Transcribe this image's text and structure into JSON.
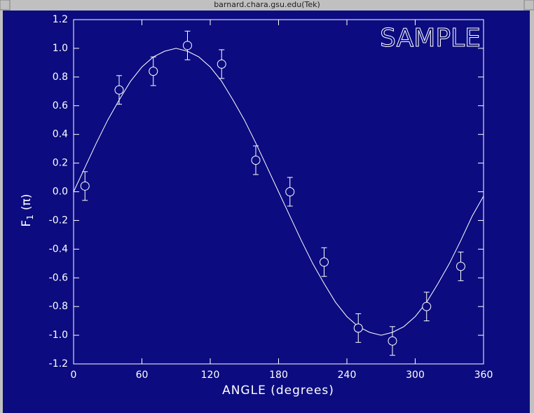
{
  "window": {
    "title": "barnard.chara.gsu.edu(Tek)"
  },
  "chart_data": {
    "type": "errorbar",
    "title": "SAMPLE",
    "xlabel": "ANGLE (degrees)",
    "ylabel": {
      "main": "F",
      "sub": "1",
      "rest": "(π)"
    },
    "xlim": [
      0,
      360
    ],
    "xticks": [
      0,
      60,
      120,
      180,
      240,
      300,
      360
    ],
    "ylim": [
      -1.2,
      1.2
    ],
    "yticks": [
      1.2,
      {
        "value": 1,
        "label": "1.0"
      },
      0.8,
      0.6,
      0.4,
      0.2,
      {
        "value": 0,
        "label": "0.0"
      },
      -0.2,
      -0.4,
      -0.6,
      -0.8,
      {
        "value": -1,
        "label": "-1.0"
      },
      -1.2
    ],
    "series": [
      {
        "type": "line",
        "color": "#ffffff",
        "x": [
          0,
          10,
          20,
          30,
          40,
          50,
          60,
          70,
          80,
          90,
          100,
          110,
          120,
          130,
          140,
          150,
          160,
          170,
          180,
          190,
          200,
          210,
          220,
          230,
          240,
          250,
          260,
          270,
          280,
          290,
          300,
          310,
          320,
          330,
          340,
          350,
          360
        ],
        "values": [
          0,
          0.17,
          0.34,
          0.5,
          0.64,
          0.77,
          0.87,
          0.94,
          0.98,
          1,
          0.98,
          0.94,
          0.87,
          0.77,
          0.64,
          0.5,
          0.34,
          0.17,
          0,
          -0.17,
          -0.34,
          -0.5,
          -0.64,
          -0.77,
          -0.87,
          -0.94,
          -0.98,
          -1,
          -0.98,
          -0.94,
          -0.87,
          -0.77,
          -0.64,
          -0.5,
          -0.34,
          -0.17,
          -0.03
        ]
      },
      {
        "type": "errorbar",
        "color": "#ffffff",
        "x": [
          10,
          40,
          70,
          100,
          130,
          160,
          190,
          220,
          250,
          280,
          310,
          340
        ],
        "values": [
          0.04,
          0.71,
          0.84,
          1.02,
          0.89,
          0.22,
          0,
          -0.49,
          -0.95,
          -1.04,
          -0.8,
          -0.52
        ],
        "errors": [
          0.1,
          0.1,
          0.1,
          0.1,
          0.1,
          0.1,
          0.1,
          0.1,
          0.1,
          0.1,
          0.1,
          0.1
        ]
      }
    ]
  }
}
